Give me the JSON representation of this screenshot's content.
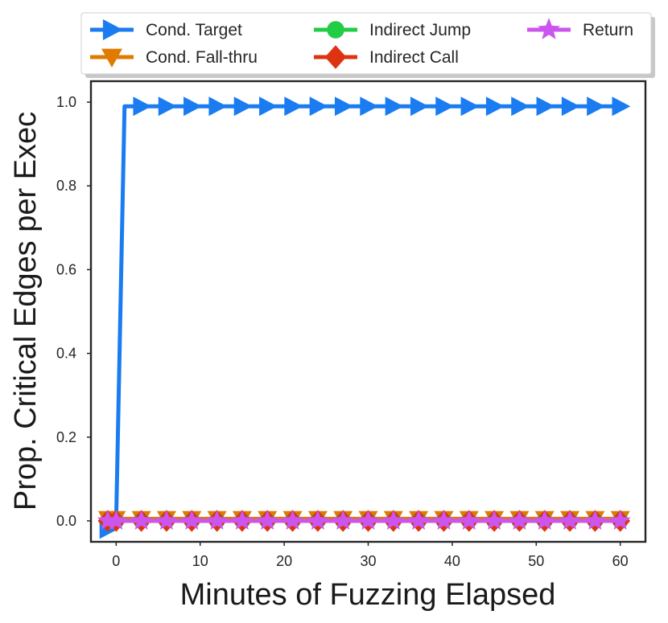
{
  "chart_data": {
    "type": "line",
    "xlabel": "Minutes of Fuzzing Elapsed",
    "ylabel": "Prop. Critical Edges per Exec",
    "xlim": [
      -3,
      63
    ],
    "ylim": [
      -0.05,
      1.05
    ],
    "xticks": [
      0,
      10,
      20,
      30,
      40,
      50,
      60
    ],
    "yticks": [
      0.0,
      0.2,
      0.4,
      0.6,
      0.8,
      1.0
    ],
    "ytick_labels": [
      "0.0",
      "0.2",
      "0.4",
      "0.6",
      "0.8",
      "1.0"
    ],
    "grid": false,
    "legend_position": "top",
    "marker_x": [
      -1,
      0,
      3,
      6,
      9,
      12,
      15,
      18,
      21,
      24,
      27,
      30,
      33,
      36,
      39,
      42,
      45,
      48,
      51,
      54,
      57,
      60
    ],
    "series": [
      {
        "name": "Cond. Target",
        "color": "#1a7cf0",
        "marker": "triangle-right",
        "x": [
          -1,
          0,
          1,
          3,
          6,
          9,
          12,
          15,
          18,
          21,
          24,
          27,
          30,
          33,
          36,
          39,
          42,
          45,
          48,
          51,
          54,
          57,
          60
        ],
        "y": [
          -0.02,
          0.0,
          0.99,
          0.99,
          0.99,
          0.99,
          0.99,
          0.99,
          0.99,
          0.99,
          0.99,
          0.99,
          0.99,
          0.99,
          0.99,
          0.99,
          0.99,
          0.99,
          0.99,
          0.99,
          0.99,
          0.99,
          0.99
        ],
        "marker_y": [
          -0.02,
          0.0,
          0.99,
          0.99,
          0.99,
          0.99,
          0.99,
          0.99,
          0.99,
          0.99,
          0.99,
          0.99,
          0.99,
          0.99,
          0.99,
          0.99,
          0.99,
          0.99,
          0.99,
          0.99,
          0.99,
          0.99
        ]
      },
      {
        "name": "Cond. Fall-thru",
        "color": "#e07b00",
        "marker": "triangle-down",
        "x": [
          -1,
          0,
          3,
          6,
          9,
          12,
          15,
          18,
          21,
          24,
          27,
          30,
          33,
          36,
          39,
          42,
          45,
          48,
          51,
          54,
          57,
          60
        ],
        "y": [
          0.005,
          0.005,
          0.005,
          0.005,
          0.005,
          0.005,
          0.005,
          0.005,
          0.005,
          0.005,
          0.005,
          0.005,
          0.005,
          0.005,
          0.005,
          0.005,
          0.005,
          0.005,
          0.005,
          0.005,
          0.005,
          0.005
        ]
      },
      {
        "name": "Indirect Jump",
        "color": "#22cc44",
        "marker": "circle",
        "x": [
          -1,
          0,
          3,
          6,
          9,
          12,
          15,
          18,
          21,
          24,
          27,
          30,
          33,
          36,
          39,
          42,
          45,
          48,
          51,
          54,
          57,
          60
        ],
        "y": [
          0,
          0,
          0,
          0,
          0,
          0,
          0,
          0,
          0,
          0,
          0,
          0,
          0,
          0,
          0,
          0,
          0,
          0,
          0,
          0,
          0,
          0
        ]
      },
      {
        "name": "Indirect Call",
        "color": "#dd3311",
        "marker": "diamond",
        "x": [
          -1,
          0,
          3,
          6,
          9,
          12,
          15,
          18,
          21,
          24,
          27,
          30,
          33,
          36,
          39,
          42,
          45,
          48,
          51,
          54,
          57,
          60
        ],
        "y": [
          0,
          0,
          0,
          0,
          0,
          0,
          0,
          0,
          0,
          0,
          0,
          0,
          0,
          0,
          0,
          0,
          0,
          0,
          0,
          0,
          0,
          0
        ]
      },
      {
        "name": "Return",
        "color": "#cc55ee",
        "marker": "star",
        "x": [
          -1,
          0,
          3,
          6,
          9,
          12,
          15,
          18,
          21,
          24,
          27,
          30,
          33,
          36,
          39,
          42,
          45,
          48,
          51,
          54,
          57,
          60
        ],
        "y": [
          0,
          0,
          0,
          0,
          0,
          0,
          0,
          0,
          0,
          0,
          0,
          0,
          0,
          0,
          0,
          0,
          0,
          0,
          0,
          0,
          0,
          0
        ]
      }
    ]
  }
}
